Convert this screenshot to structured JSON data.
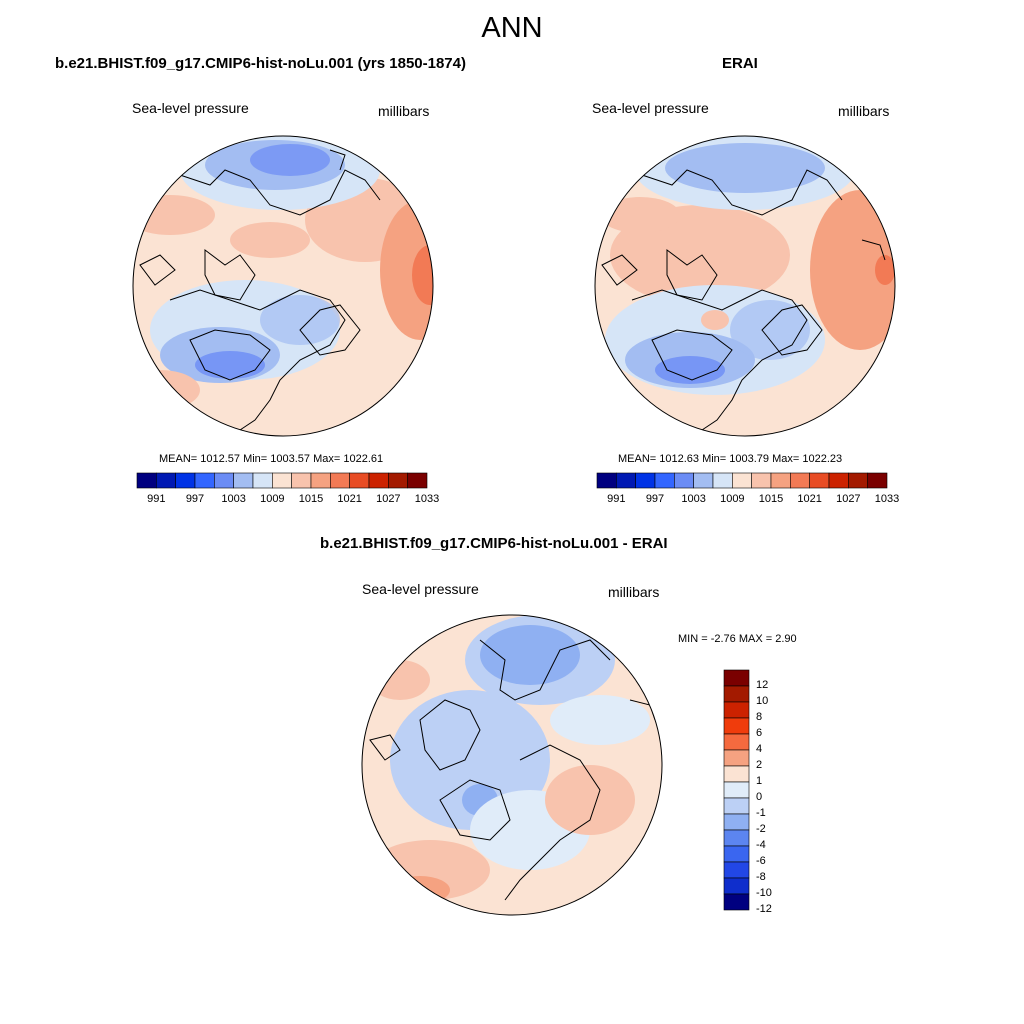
{
  "page": {
    "title": "ANN"
  },
  "panels": [
    {
      "title": "b.e21.BHIST.f09_g17.CMIP6-hist-noLu.001 (yrs 1850-1874)",
      "variable": "Sea-level pressure",
      "units": "millibars",
      "stats": "MEAN= 1012.57  Min= 1003.57  Max= 1022.61",
      "colorbar_labels": [
        "991",
        "997",
        "1003",
        "1009",
        "1015",
        "1021",
        "1027",
        "1033"
      ]
    },
    {
      "title": "ERAI",
      "variable": "Sea-level pressure",
      "units": "millibars",
      "stats": "MEAN= 1012.63  Min= 1003.79  Max= 1022.23",
      "colorbar_labels": [
        "991",
        "997",
        "1003",
        "1009",
        "1015",
        "1021",
        "1027",
        "1033"
      ]
    },
    {
      "title": "b.e21.BHIST.f09_g17.CMIP6-hist-noLu.001 - ERAI",
      "variable": "Sea-level pressure",
      "units": "millibars",
      "stats": "MIN =  -2.76 MAX =   2.90",
      "colorbar_labels": [
        "12",
        "10",
        "8",
        "6",
        "4",
        "2",
        "1",
        "0",
        "-1",
        "-2",
        "-4",
        "-6",
        "-8",
        "-10",
        "-12"
      ]
    }
  ],
  "colors": {
    "abs_scale": [
      "#000080",
      "#0019b3",
      "#0033e6",
      "#3366ff",
      "#6b8cf5",
      "#a3bdf2",
      "#d6e5f7",
      "#fbe3d3",
      "#f8c3ad",
      "#f5a281",
      "#f27a55",
      "#e84c24",
      "#cc2200",
      "#a31a00",
      "#7a0000"
    ],
    "diff_scale": [
      "#7a0000",
      "#a31a00",
      "#cc2200",
      "#f03c0c",
      "#f56a3f",
      "#f5a281",
      "#fbe3d3",
      "#e0ecf9",
      "#bcd0f5",
      "#8fb0f2",
      "#5c85f0",
      "#3a66f0",
      "#2247e6",
      "#0f2ecc",
      "#000080"
    ]
  }
}
